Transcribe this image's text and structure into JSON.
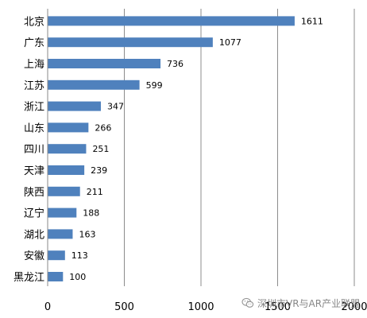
{
  "chart_data": {
    "type": "bar",
    "orientation": "horizontal",
    "categories": [
      "北京",
      "广东",
      "上海",
      "江苏",
      "浙江",
      "山东",
      "四川",
      "天津",
      "陕西",
      "辽宁",
      "湖北",
      "安徽",
      "黑龙江"
    ],
    "values": [
      1611,
      1077,
      736,
      599,
      347,
      266,
      251,
      239,
      211,
      188,
      163,
      113,
      100
    ],
    "xlim": [
      0,
      2000
    ],
    "xticks": [
      0,
      500,
      1000,
      1500,
      2000
    ],
    "grid": "vertical",
    "legend": "none",
    "title": "",
    "xlabel": "",
    "ylabel": "",
    "bar_color": "#4F81BD"
  },
  "watermark": {
    "text": "深圳市VR与AR产业联盟",
    "icon": "wechat-icon"
  }
}
